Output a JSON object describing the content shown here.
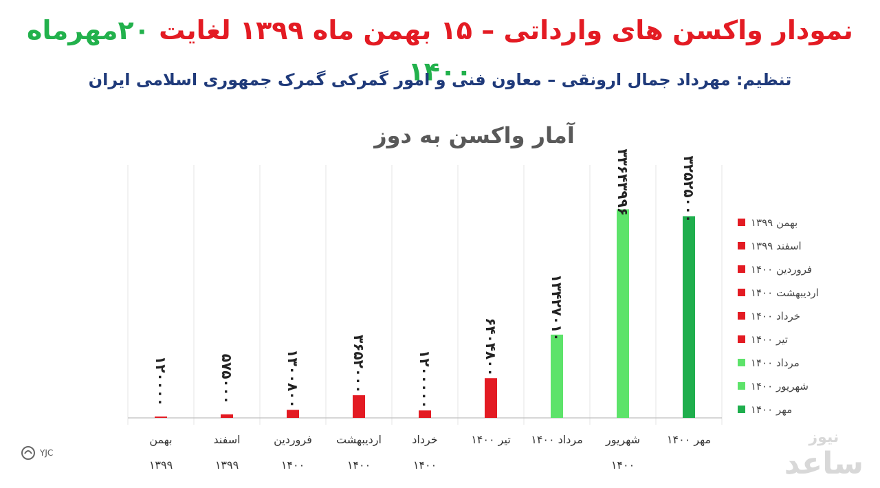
{
  "header": {
    "title_part1": "نمودار واکسن های وارداتی – ۱۵ بهمن ماه ۱۳۹۹ لغایت ",
    "title_part2": "۲۰مهرماه ۱۴۰۰",
    "subtitle": "تنظیم: مهرداد جمال ارونقی – معاون فنی و امور گمرکی گمرک جمهوری اسلامی ایران"
  },
  "chart_data": {
    "type": "bar",
    "title": "آمار واکسن به دوز",
    "categories": [
      {
        "line1": "بهمن",
        "line2": "۱۳۹۹"
      },
      {
        "line1": "اسفند",
        "line2": "۱۳۹۹"
      },
      {
        "line1": "فروردین",
        "line2": "۱۴۰۰"
      },
      {
        "line1": "اردیبهشت",
        "line2": "۱۴۰۰"
      },
      {
        "line1": "خرداد",
        "line2": "۱۴۰۰"
      },
      {
        "line1": "تیر ۱۴۰۰",
        "line2": ""
      },
      {
        "line1": "مرداد ۱۴۰۰",
        "line2": ""
      },
      {
        "line1": "شهریور",
        "line2": "۱۴۰۰"
      },
      {
        "line1": "مهر ۱۴۰۰",
        "line2": ""
      }
    ],
    "values": [
      120000,
      575000,
      1300800,
      3652000,
      1200000,
      6404800,
      13427010,
      33643996,
      32525000
    ],
    "value_labels": [
      "۱۲۰۰۰۰",
      "۵۷۵۰۰۰",
      "۱۳۰۰۸۰۰",
      "۳۶۵۲۰۰۰",
      "۱۲۰۰۰۰۰",
      "۶۴۰۴۸۰۰",
      "۱۳۴۲۷۰۱۰",
      "۳۳۶۴۳۹۹۶",
      "۳۲۵۲۵۰۰۰"
    ],
    "colors": [
      "#e31b23",
      "#e31b23",
      "#e31b23",
      "#e31b23",
      "#e31b23",
      "#e31b23",
      "#5de36a",
      "#5de36a",
      "#1fae4d"
    ],
    "legend": [
      {
        "label": "بهمن ۱۳۹۹",
        "color": "#e31b23"
      },
      {
        "label": "اسفند ۱۳۹۹",
        "color": "#e31b23"
      },
      {
        "label": "فروردین ۱۴۰۰",
        "color": "#e31b23"
      },
      {
        "label": "اردیبهشت ۱۴۰۰",
        "color": "#e31b23"
      },
      {
        "label": "خرداد ۱۴۰۰",
        "color": "#e31b23"
      },
      {
        "label": "تیر ۱۴۰۰",
        "color": "#e31b23"
      },
      {
        "label": "مرداد ۱۴۰۰",
        "color": "#5de36a"
      },
      {
        "label": "شهریور ۱۴۰۰",
        "color": "#5de36a"
      },
      {
        "label": "مهر ۱۴۰۰",
        "color": "#1fae4d"
      }
    ],
    "legend_position": "right",
    "ylim": [
      0,
      40000000
    ],
    "grid": false
  },
  "watermarks": {
    "left": "YJC",
    "right_top": "نیوز",
    "right_main": "ساعد"
  }
}
